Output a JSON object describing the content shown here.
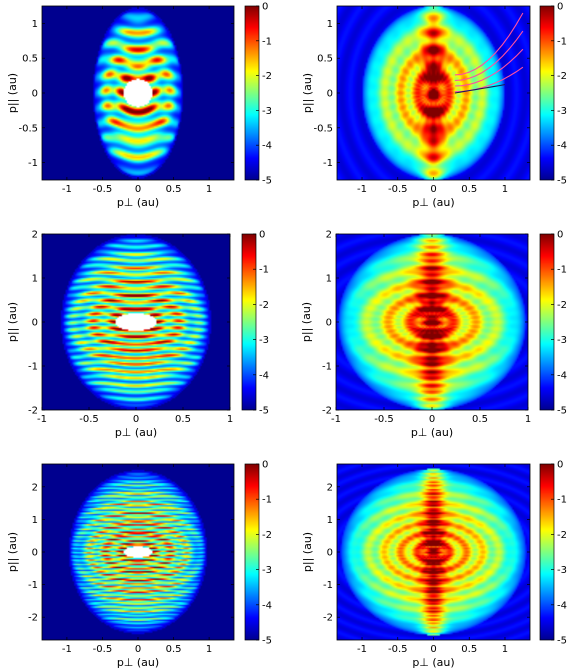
{
  "colormap": {
    "name": "jet",
    "stops": [
      "#00008f",
      "#0000ff",
      "#0080ff",
      "#00ffff",
      "#80ff80",
      "#ffff00",
      "#ff8000",
      "#ff0000",
      "#800000"
    ]
  },
  "chart_data": [
    {
      "type": "heatmap",
      "xlabel": "p⊥ (au)",
      "ylabel": "p|| (au)",
      "xlim": [
        -1.35,
        1.35
      ],
      "ylim": [
        -1.25,
        1.25
      ],
      "xticks": [
        -1,
        -0.5,
        0,
        0.5,
        1
      ],
      "yticks": [
        -1,
        -0.5,
        0,
        0.5,
        1
      ],
      "colorbar": {
        "min": -5,
        "max": 0,
        "ticks": [
          0,
          -1,
          -2,
          -3,
          -4,
          -5
        ]
      },
      "style": "filtered",
      "hole": {
        "rx": 0.2,
        "ry": 0.2
      },
      "envelope": {
        "rx": 0.62,
        "ry": 1.2
      },
      "fringe_density": 14,
      "overlay_lines": false
    },
    {
      "type": "heatmap",
      "xlabel": "p⊥ (au)",
      "ylabel": "p|| (au)",
      "xlim": [
        -1.35,
        1.35
      ],
      "ylim": [
        -1.25,
        1.25
      ],
      "xticks": [
        -1,
        -0.5,
        0,
        0.5,
        1
      ],
      "yticks": [
        -1,
        -0.5,
        0,
        0.5,
        1
      ],
      "colorbar": {
        "min": -5,
        "max": 0,
        "ticks": [
          0,
          -1,
          -2,
          -3,
          -4,
          -5
        ]
      },
      "style": "full",
      "hole": null,
      "envelope": {
        "rx": 1.0,
        "ry": 1.25
      },
      "fringe_density": 14,
      "overlay_lines": true
    },
    {
      "type": "heatmap",
      "xlabel": "p⊥ (au)",
      "ylabel": "p|| (au)",
      "xlim": [
        -1,
        1
      ],
      "ylim": [
        -2,
        2
      ],
      "xticks": [
        -1,
        -0.5,
        0,
        0.5,
        1
      ],
      "yticks": [
        -2,
        -1,
        0,
        1,
        2
      ],
      "colorbar": {
        "min": -5,
        "max": 0,
        "ticks": [
          0,
          -1,
          -2,
          -3,
          -4,
          -5
        ]
      },
      "style": "filtered",
      "hole": {
        "rx": 0.22,
        "ry": 0.2
      },
      "envelope": {
        "rx": 0.78,
        "ry": 1.95
      },
      "fringe_density": 20,
      "overlay_lines": false
    },
    {
      "type": "heatmap",
      "xlabel": "p⊥ (au)",
      "ylabel": "p|| (au)",
      "xlim": [
        -1,
        1
      ],
      "ylim": [
        -2,
        2
      ],
      "xticks": [
        -1,
        -0.5,
        0,
        0.5,
        1
      ],
      "yticks": [
        -2,
        -1,
        0,
        1,
        2
      ],
      "colorbar": {
        "min": -5,
        "max": 0,
        "ticks": [
          0,
          -1,
          -2,
          -3,
          -4,
          -5
        ]
      },
      "style": "full",
      "hole": null,
      "envelope": {
        "rx": 0.98,
        "ry": 2.0
      },
      "fringe_density": 20,
      "overlay_lines": false
    },
    {
      "type": "heatmap",
      "xlabel": "p⊥ (au)",
      "ylabel": "p|| (au)",
      "xlim": [
        -1.35,
        1.35
      ],
      "ylim": [
        -2.7,
        2.7
      ],
      "xticks": [
        -1,
        -0.5,
        0,
        0.5,
        1
      ],
      "yticks": [
        -2,
        -1,
        0,
        1,
        2
      ],
      "colorbar": {
        "min": -5,
        "max": 0,
        "ticks": [
          0,
          -1,
          -2,
          -3,
          -4,
          -5
        ]
      },
      "style": "filtered",
      "hole": {
        "rx": 0.2,
        "ry": 0.17
      },
      "envelope": {
        "rx": 0.95,
        "ry": 2.45
      },
      "fringe_density": 26,
      "overlay_lines": false
    },
    {
      "type": "heatmap",
      "xlabel": "p⊥ (au)",
      "ylabel": "p|| (au)",
      "xlim": [
        -1.35,
        1.35
      ],
      "ylim": [
        -2.7,
        2.7
      ],
      "xticks": [
        -1,
        -0.5,
        0,
        0.5,
        1
      ],
      "yticks": [
        -2,
        -1,
        0,
        1,
        2
      ],
      "colorbar": {
        "min": -5,
        "max": 0,
        "ticks": [
          0,
          -1,
          -2,
          -3,
          -4,
          -5
        ]
      },
      "style": "full",
      "hole": null,
      "envelope": {
        "rx": 1.3,
        "ry": 2.55
      },
      "fringe_density": 26,
      "overlay_lines": false
    }
  ]
}
